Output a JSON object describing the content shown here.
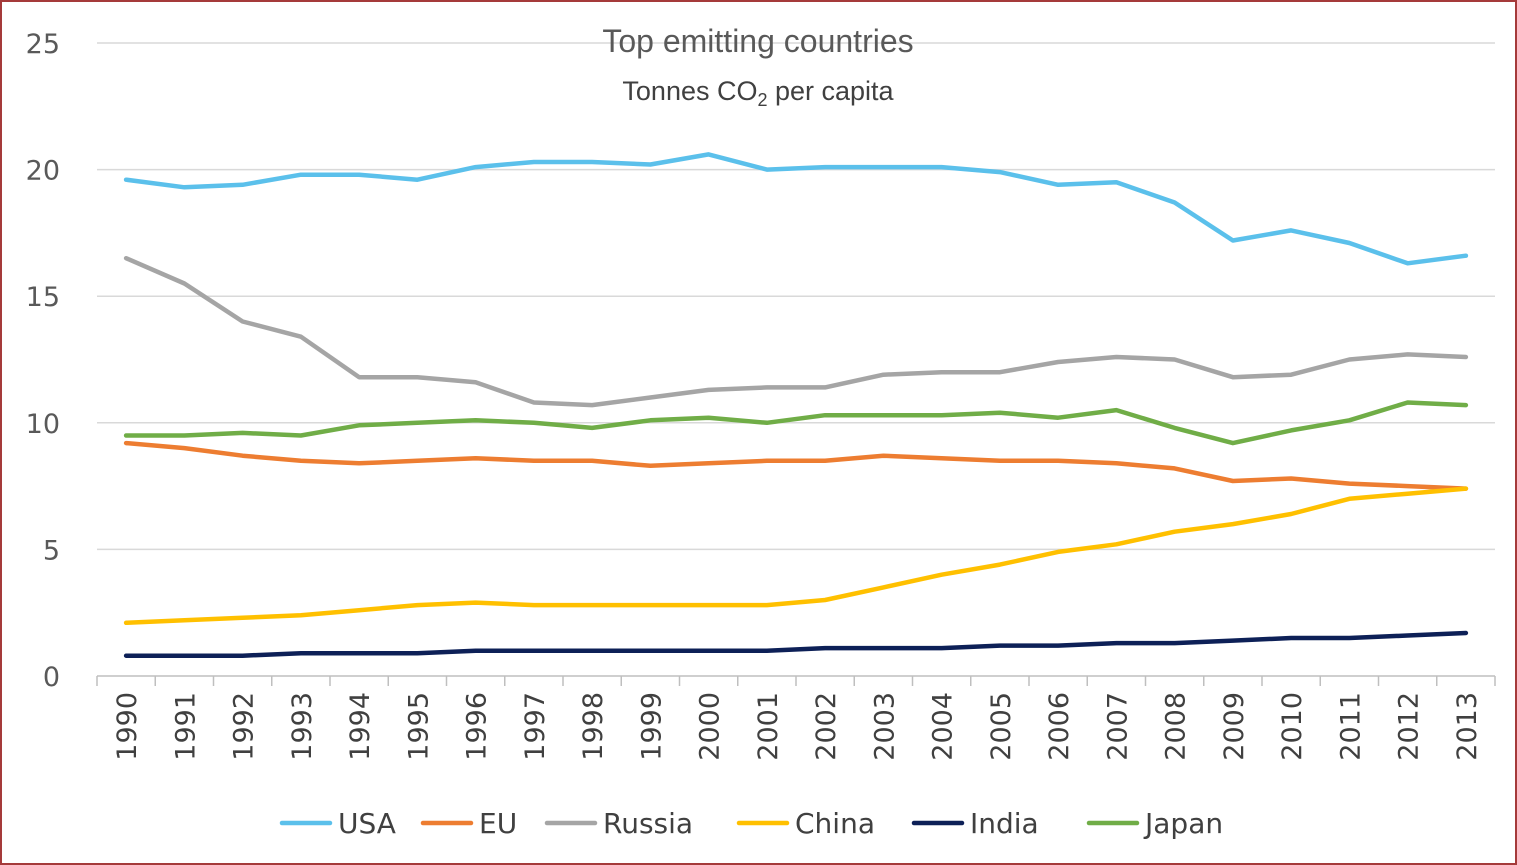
{
  "chart_data": {
    "type": "line",
    "title": "Top emitting countries",
    "subtitle": {
      "prefix": "Tonnes CO",
      "sub": "2",
      "suffix": " per capita"
    },
    "xlabel": "",
    "ylabel": "",
    "ylim": [
      0,
      25
    ],
    "yticks": [
      "0",
      "5",
      "10",
      "15",
      "20",
      "25"
    ],
    "grid": true,
    "legend_position": "bottom",
    "categories": [
      "1990",
      "1991",
      "1992",
      "1993",
      "1994",
      "1995",
      "1996",
      "1997",
      "1998",
      "1999",
      "2000",
      "2001",
      "2002",
      "2003",
      "2004",
      "2005",
      "2006",
      "2007",
      "2008",
      "2009",
      "2010",
      "2011",
      "2012",
      "2013"
    ],
    "series": [
      {
        "name": "USA",
        "color": "#5bc0eb",
        "values": [
          19.6,
          19.3,
          19.4,
          19.8,
          19.8,
          19.6,
          20.1,
          20.3,
          20.3,
          20.2,
          20.6,
          20.0,
          20.1,
          20.1,
          20.1,
          19.9,
          19.4,
          19.5,
          18.7,
          17.2,
          17.6,
          17.1,
          16.3,
          16.6
        ]
      },
      {
        "name": "EU",
        "color": "#ed7d31",
        "values": [
          9.2,
          9.0,
          8.7,
          8.5,
          8.4,
          8.5,
          8.6,
          8.5,
          8.5,
          8.3,
          8.4,
          8.5,
          8.5,
          8.7,
          8.6,
          8.5,
          8.5,
          8.4,
          8.2,
          7.7,
          7.8,
          7.6,
          7.5,
          7.4
        ]
      },
      {
        "name": "Russia",
        "color": "#a5a5a5",
        "values": [
          16.5,
          15.5,
          14.0,
          13.4,
          11.8,
          11.8,
          11.6,
          10.8,
          10.7,
          11.0,
          11.3,
          11.4,
          11.4,
          11.9,
          12.0,
          12.0,
          12.4,
          12.6,
          12.5,
          11.8,
          11.9,
          12.5,
          12.7,
          12.6
        ]
      },
      {
        "name": "China",
        "color": "#ffc000",
        "values": [
          2.1,
          2.2,
          2.3,
          2.4,
          2.6,
          2.8,
          2.9,
          2.8,
          2.8,
          2.8,
          2.8,
          2.8,
          3.0,
          3.5,
          4.0,
          4.4,
          4.9,
          5.2,
          5.7,
          6.0,
          6.4,
          7.0,
          7.2,
          7.4
        ]
      },
      {
        "name": "India",
        "color": "#0d2057",
        "values": [
          0.8,
          0.8,
          0.8,
          0.9,
          0.9,
          0.9,
          1.0,
          1.0,
          1.0,
          1.0,
          1.0,
          1.0,
          1.1,
          1.1,
          1.1,
          1.2,
          1.2,
          1.3,
          1.3,
          1.4,
          1.5,
          1.5,
          1.6,
          1.7
        ]
      },
      {
        "name": "Japan",
        "color": "#70ad47",
        "values": [
          9.5,
          9.5,
          9.6,
          9.5,
          9.9,
          10.0,
          10.1,
          10.0,
          9.8,
          10.1,
          10.2,
          10.0,
          10.3,
          10.3,
          10.3,
          10.4,
          10.2,
          10.5,
          9.8,
          9.2,
          9.7,
          10.1,
          10.8,
          10.7
        ]
      }
    ]
  }
}
